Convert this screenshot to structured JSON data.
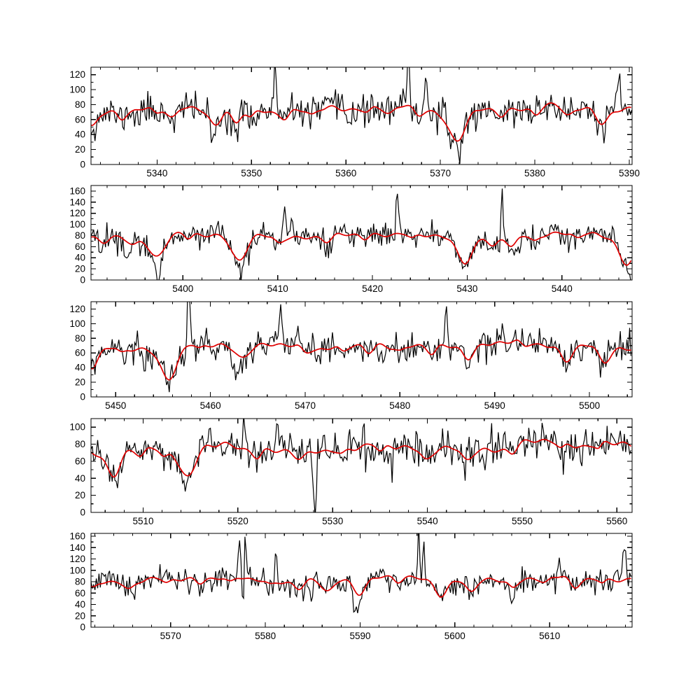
{
  "figure": {
    "background": "#ffffff",
    "description": "Five stacked spectral panels: black observed spectrum with red model fit overlay"
  },
  "chart_data": {
    "type": "line",
    "title": "",
    "xlabel": "",
    "ylabel": "",
    "grid": false,
    "legend": "none",
    "series": [
      {
        "name": "observed-spectrum",
        "color": "#000000",
        "linewidth": 1.2
      },
      {
        "name": "model-fit",
        "color": "#e00000",
        "linewidth": 1.7
      }
    ],
    "x_major_step": 10,
    "x_minor_step": 2,
    "y_major_step": 20,
    "y_minor_step": 10,
    "panels": [
      {
        "xmin": 5333.0,
        "xmax": 5390.3,
        "ymin": 0,
        "ymax": 130,
        "xtick_labels": [
          5340,
          5350,
          5360,
          5370,
          5380,
          5390
        ],
        "ytick_labels": [
          0,
          20,
          40,
          60,
          80,
          100,
          120
        ],
        "continuum": 74,
        "noise_sigma": 10.5,
        "seed": 11,
        "features": [
          [
            5333.1,
            0.55,
            20
          ],
          [
            5336.2,
            0.4,
            8
          ],
          [
            5339.9,
            0.4,
            9
          ],
          [
            5341.6,
            0.5,
            14
          ],
          [
            5346.2,
            0.6,
            26
          ],
          [
            5348.3,
            0.5,
            21
          ],
          [
            5349.9,
            0.4,
            12
          ],
          [
            5353.6,
            0.4,
            8
          ],
          [
            5356.4,
            0.4,
            7
          ],
          [
            5362.3,
            0.4,
            7
          ],
          [
            5364.6,
            0.5,
            10
          ],
          [
            5367.6,
            0.4,
            7
          ],
          [
            5371.7,
            0.9,
            38
          ],
          [
            5376.5,
            0.4,
            6
          ],
          [
            5380.1,
            0.4,
            8
          ],
          [
            5383.5,
            0.5,
            12
          ],
          [
            5387.1,
            0.6,
            16
          ]
        ],
        "spikes": [
          [
            5352.5,
            0.14,
            56
          ],
          [
            5366.6,
            0.13,
            80
          ],
          [
            5368.4,
            0.13,
            48
          ],
          [
            5388.9,
            0.12,
            38
          ]
        ],
        "black_dips": [
          [
            5337.9,
            0.2,
            16
          ],
          [
            5345.9,
            0.25,
            18
          ],
          [
            5348.5,
            0.2,
            14
          ],
          [
            5360.4,
            0.2,
            14
          ],
          [
            5371.9,
            0.3,
            14
          ],
          [
            5387.2,
            0.2,
            12
          ]
        ]
      },
      {
        "xmin": 5390.3,
        "xmax": 5447.4,
        "ymin": 0,
        "ymax": 170,
        "xtick_labels": [
          5400,
          5410,
          5420,
          5430,
          5440
        ],
        "ytick_labels": [
          0,
          20,
          40,
          60,
          80,
          100,
          120,
          140,
          160
        ],
        "continuum": 80,
        "noise_sigma": 11,
        "seed": 22,
        "features": [
          [
            5391.6,
            0.5,
            12
          ],
          [
            5394.8,
            0.5,
            11
          ],
          [
            5397.2,
            0.8,
            40
          ],
          [
            5400.6,
            0.4,
            10
          ],
          [
            5405.9,
            0.8,
            45
          ],
          [
            5410.1,
            0.4,
            9
          ],
          [
            5415.3,
            0.5,
            13
          ],
          [
            5419.2,
            0.4,
            8
          ],
          [
            5424.2,
            0.4,
            9
          ],
          [
            5429.8,
            0.8,
            43
          ],
          [
            5432.7,
            0.5,
            20
          ],
          [
            5434.7,
            0.5,
            22
          ],
          [
            5437.1,
            0.4,
            9
          ],
          [
            5441.6,
            0.4,
            8
          ],
          [
            5446.9,
            0.8,
            50
          ]
        ],
        "spikes": [
          [
            5410.7,
            0.13,
            58
          ],
          [
            5411.5,
            0.11,
            42
          ],
          [
            5422.6,
            0.13,
            88
          ],
          [
            5428.0,
            0.1,
            25
          ],
          [
            5433.7,
            0.11,
            72
          ]
        ],
        "black_dips": [
          [
            5394.1,
            0.25,
            28
          ],
          [
            5397.4,
            0.3,
            22
          ],
          [
            5406.1,
            0.2,
            18
          ],
          [
            5415.1,
            0.25,
            18
          ],
          [
            5435.5,
            0.2,
            16
          ],
          [
            5440.7,
            0.2,
            18
          ],
          [
            5447.2,
            0.25,
            22
          ]
        ]
      },
      {
        "xmin": 5447.4,
        "xmax": 5504.5,
        "ymin": 0,
        "ymax": 130,
        "xtick_labels": [
          5450,
          5460,
          5470,
          5480,
          5490,
          5500
        ],
        "ytick_labels": [
          0,
          20,
          40,
          60,
          80,
          100,
          120
        ],
        "continuum": 68,
        "noise_sigma": 10.5,
        "seed": 33,
        "features": [
          [
            5447.5,
            0.6,
            24
          ],
          [
            5450.6,
            0.4,
            8
          ],
          [
            5455.6,
            0.9,
            42
          ],
          [
            5458.8,
            0.4,
            7
          ],
          [
            5463.3,
            0.6,
            13
          ],
          [
            5468.0,
            2.0,
            -5
          ],
          [
            5470.0,
            0.4,
            7
          ],
          [
            5474.0,
            0.4,
            9
          ],
          [
            5476.7,
            0.5,
            12
          ],
          [
            5480.0,
            0.4,
            6
          ],
          [
            5483.4,
            0.4,
            9
          ],
          [
            5487.2,
            0.5,
            13
          ],
          [
            5490.5,
            2.5,
            -8
          ],
          [
            5493.1,
            0.4,
            7
          ],
          [
            5497.5,
            0.6,
            21
          ],
          [
            5501.5,
            0.6,
            24
          ]
        ],
        "spikes": [
          [
            5457.7,
            0.13,
            72
          ],
          [
            5467.4,
            0.2,
            42
          ],
          [
            5484.9,
            0.13,
            68
          ],
          [
            5490.9,
            0.15,
            32
          ]
        ],
        "black_dips": [
          [
            5452.8,
            0.2,
            18
          ],
          [
            5462.6,
            0.25,
            25
          ],
          [
            5478.1,
            0.2,
            20
          ],
          [
            5487.1,
            0.2,
            16
          ],
          [
            5499.0,
            0.2,
            14
          ]
        ]
      },
      {
        "xmin": 5504.5,
        "xmax": 5561.6,
        "ymin": 0,
        "ymax": 110,
        "xtick_labels": [
          5510,
          5520,
          5530,
          5540,
          5550,
          5560
        ],
        "ytick_labels": [
          0,
          20,
          40,
          60,
          80,
          100
        ],
        "continuum": 75,
        "noise_sigma": 10,
        "seed": 44,
        "features": [
          [
            5506.9,
            0.7,
            30
          ],
          [
            5509.8,
            0.4,
            8
          ],
          [
            5512.2,
            0.4,
            10
          ],
          [
            5514.7,
            0.8,
            36
          ],
          [
            5522.1,
            0.4,
            8
          ],
          [
            5526.6,
            0.6,
            13
          ],
          [
            5531.0,
            0.4,
            6
          ],
          [
            5535.1,
            0.4,
            10
          ],
          [
            5539.8,
            0.5,
            12
          ],
          [
            5544.1,
            0.5,
            12
          ],
          [
            5549.0,
            0.4,
            6
          ],
          [
            5552.0,
            3.0,
            -6
          ],
          [
            5554.1,
            0.4,
            9
          ],
          [
            5558.1,
            0.3,
            6
          ],
          [
            5560.0,
            1.5,
            -6
          ]
        ],
        "spikes": [
          [
            5520.6,
            0.1,
            32
          ],
          [
            5524.1,
            0.13,
            42
          ]
        ],
        "black_dips": [
          [
            5528.1,
            0.15,
            85
          ],
          [
            5536.1,
            0.2,
            18
          ],
          [
            5546.0,
            0.2,
            16
          ],
          [
            5554.4,
            0.2,
            20
          ]
        ]
      },
      {
        "xmin": 5561.6,
        "xmax": 5618.7,
        "ymin": 0,
        "ymax": 165,
        "xtick_labels": [
          5570,
          5580,
          5590,
          5600,
          5610
        ],
        "ytick_labels": [
          0,
          20,
          40,
          60,
          80,
          100,
          120,
          140,
          160
        ],
        "continuum": 84,
        "noise_sigma": 11,
        "seed": 55,
        "features": [
          [
            5561.7,
            0.4,
            14
          ],
          [
            5565.6,
            0.5,
            14
          ],
          [
            5569.6,
            0.4,
            8
          ],
          [
            5573.1,
            0.4,
            8
          ],
          [
            5576.3,
            0.4,
            10
          ],
          [
            5580.5,
            0.4,
            7
          ],
          [
            5583.6,
            0.5,
            14
          ],
          [
            5586.6,
            0.6,
            20
          ],
          [
            5589.9,
            0.6,
            24
          ],
          [
            5594.0,
            0.4,
            8
          ],
          [
            5598.6,
            0.6,
            26
          ],
          [
            5601.7,
            0.5,
            20
          ],
          [
            5606.1,
            0.4,
            10
          ],
          [
            5609.5,
            0.4,
            7
          ],
          [
            5612.6,
            0.5,
            18
          ],
          [
            5615.6,
            0.3,
            6
          ]
        ],
        "spikes": [
          [
            5577.3,
            0.12,
            85
          ],
          [
            5577.9,
            0.1,
            62
          ],
          [
            5581.1,
            0.1,
            42
          ],
          [
            5596.2,
            0.12,
            78
          ],
          [
            5596.7,
            0.09,
            60
          ],
          [
            5611.0,
            0.1,
            28
          ],
          [
            5617.9,
            0.15,
            60
          ]
        ],
        "black_dips": [
          [
            5577.6,
            0.09,
            62
          ],
          [
            5584.8,
            0.15,
            28
          ],
          [
            5589.6,
            0.25,
            40
          ],
          [
            5593.2,
            0.15,
            22
          ],
          [
            5605.9,
            0.2,
            30
          ]
        ]
      }
    ]
  }
}
